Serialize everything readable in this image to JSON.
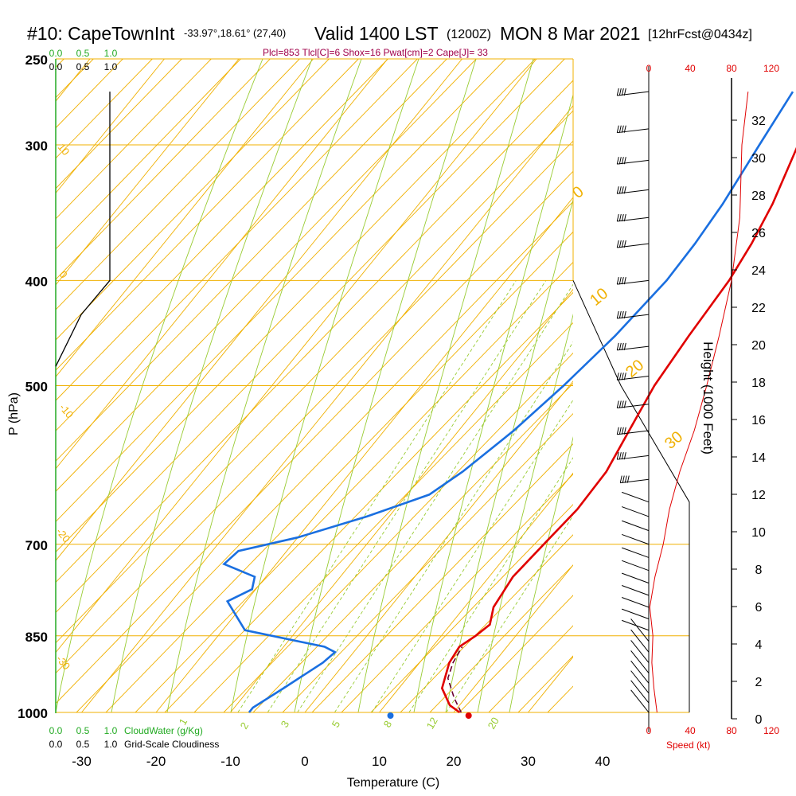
{
  "header": {
    "station": "#10: CapeTownInt",
    "coords": "-33.97°,18.61° (27,40)",
    "valid": "Valid 1400 LST",
    "zulu": "(1200Z)",
    "date": "MON 8 Mar 2021",
    "forecast": "[12hrFcst@0434z]",
    "indices": "Plcl=853 Tlcl[C]=6 Shox=16 Pwat[cm]=2 Cape[J]= 33"
  },
  "colors": {
    "temperature": "#e00000",
    "dewpoint": "#1a6fe0",
    "isobar_isotherm": "#f0b000",
    "moist_adiabat": "#99cc33",
    "mixing_ratio": "#99cc33",
    "speed": "#e00000",
    "cloud": "#22aa22",
    "indices": "#a0004a"
  },
  "chart_data": {
    "type": "skew-t",
    "xlabel": "Temperature (C)",
    "ylabel": "P (hPa)",
    "right_axis_label": "Height (1000 Feet)",
    "speed_axis_label": "Speed (kt)",
    "cloud_labels": {
      "cloud_water": "CloudWater (g/Kg)",
      "cloudiness": "Grid-Scale Cloudiness",
      "ticks": [
        "0.0",
        "0.5",
        "1.0"
      ]
    },
    "pressure_ticks": [
      250,
      300,
      400,
      500,
      700,
      850,
      1000
    ],
    "temp_ticks": [
      -30,
      -20,
      -10,
      0,
      10,
      20,
      30,
      40
    ],
    "height_ticks_kft": [
      0,
      2,
      4,
      6,
      8,
      10,
      12,
      14,
      16,
      18,
      20,
      22,
      24,
      26,
      28,
      30,
      32
    ],
    "speed_ticks": [
      "0",
      "40",
      "80",
      "120"
    ],
    "dry_adiabat_labels": [
      "10",
      "0",
      "-10",
      "-20",
      "-30"
    ],
    "moist_adiabat_labels": [
      "0",
      "10",
      "20",
      "30"
    ],
    "mixing_ratio_labels": [
      "1",
      "2",
      "3",
      "5",
      "8",
      "12",
      "20"
    ],
    "temperature_profile": [
      {
        "p": 268,
        "t": 1.5
      },
      {
        "p": 300,
        "t": 4.5
      },
      {
        "p": 340,
        "t": 7.5
      },
      {
        "p": 370,
        "t": 9.0
      },
      {
        "p": 400,
        "t": 10.0
      },
      {
        "p": 450,
        "t": 10.6
      },
      {
        "p": 500,
        "t": 11.4
      },
      {
        "p": 550,
        "t": 12.9
      },
      {
        "p": 600,
        "t": 14.3
      },
      {
        "p": 650,
        "t": 14.5
      },
      {
        "p": 700,
        "t": 13.8
      },
      {
        "p": 750,
        "t": 13.2
      },
      {
        "p": 800,
        "t": 13.9
      },
      {
        "p": 830,
        "t": 15.3
      },
      {
        "p": 850,
        "t": 14.6
      },
      {
        "p": 870,
        "t": 13.6
      },
      {
        "p": 900,
        "t": 14.0
      },
      {
        "p": 950,
        "t": 15.8
      },
      {
        "p": 985,
        "t": 18.7
      },
      {
        "p": 1000,
        "t": 20.8
      }
    ],
    "dewpoint_profile": [
      {
        "p": 268,
        "t": -2.0
      },
      {
        "p": 300,
        "t": -0.7
      },
      {
        "p": 340,
        "t": 0.8
      },
      {
        "p": 370,
        "t": 1.4
      },
      {
        "p": 400,
        "t": 1.6
      },
      {
        "p": 450,
        "t": 0.7
      },
      {
        "p": 500,
        "t": -0.8
      },
      {
        "p": 550,
        "t": -2.6
      },
      {
        "p": 600,
        "t": -5.0
      },
      {
        "p": 630,
        "t": -7.0
      },
      {
        "p": 660,
        "t": -13.0
      },
      {
        "p": 690,
        "t": -20.0
      },
      {
        "p": 710,
        "t": -26.5
      },
      {
        "p": 730,
        "t": -27.0
      },
      {
        "p": 750,
        "t": -21.5
      },
      {
        "p": 770,
        "t": -20.5
      },
      {
        "p": 790,
        "t": -22.5
      },
      {
        "p": 840,
        "t": -17.0
      },
      {
        "p": 870,
        "t": -4.5
      },
      {
        "p": 880,
        "t": -2.5
      },
      {
        "p": 900,
        "t": -3.0
      },
      {
        "p": 950,
        "t": -5.5
      },
      {
        "p": 990,
        "t": -7.5
      },
      {
        "p": 1000,
        "t": -7.5
      }
    ],
    "parcel_path": [
      {
        "p": 1000,
        "t": 21.0
      },
      {
        "p": 970,
        "t": 18.5
      },
      {
        "p": 930,
        "t": 15.5
      },
      {
        "p": 900,
        "t": 14.5
      },
      {
        "p": 870,
        "t": 14.0
      }
    ],
    "surface_temperature": 22.0,
    "surface_dewpoint": 11.5,
    "cloudiness_profile": [
      {
        "p": 268,
        "v": 0.85
      },
      {
        "p": 400,
        "v": 0.85
      },
      {
        "p": 430,
        "v": 0.4
      },
      {
        "p": 480,
        "v": 0.0
      }
    ],
    "wind_speed_profile": [
      {
        "p": 1000,
        "kt": 8
      },
      {
        "p": 950,
        "kt": 5
      },
      {
        "p": 900,
        "kt": 3
      },
      {
        "p": 850,
        "kt": 4
      },
      {
        "p": 800,
        "kt": 1
      },
      {
        "p": 750,
        "kt": 6
      },
      {
        "p": 700,
        "kt": 14
      },
      {
        "p": 650,
        "kt": 20
      },
      {
        "p": 600,
        "kt": 30
      },
      {
        "p": 550,
        "kt": 44
      },
      {
        "p": 500,
        "kt": 56
      },
      {
        "p": 450,
        "kt": 68
      },
      {
        "p": 400,
        "kt": 80
      },
      {
        "p": 350,
        "kt": 88
      },
      {
        "p": 300,
        "kt": 90
      },
      {
        "p": 268,
        "kt": 96
      }
    ],
    "wind_barb_pressures": [
      268,
      290,
      310,
      330,
      350,
      370,
      400,
      430,
      460,
      490,
      520,
      550,
      580,
      610,
      640,
      660,
      680,
      700,
      720,
      740,
      760,
      780,
      800,
      820,
      840,
      860,
      880,
      900,
      920,
      940,
      960,
      980,
      1000
    ]
  }
}
